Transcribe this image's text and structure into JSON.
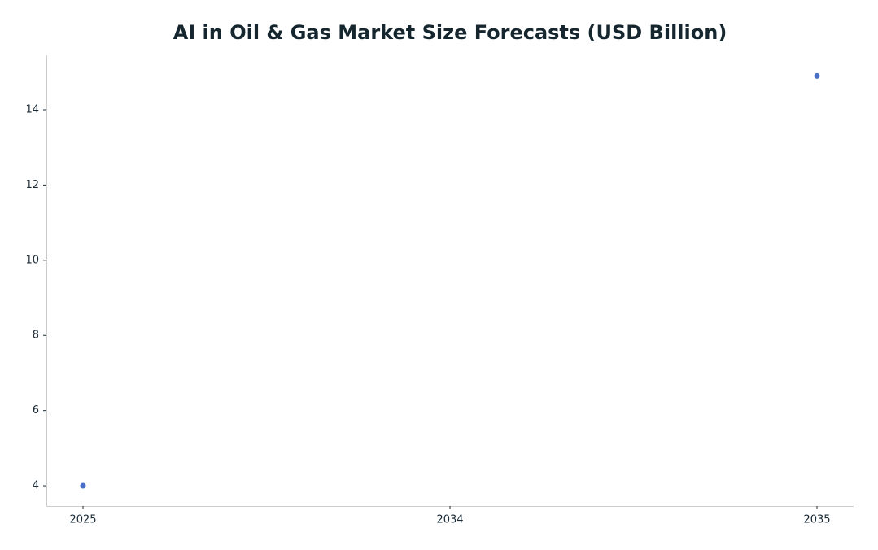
{
  "chart_data": {
    "type": "scatter",
    "title": "AI in Oil & Gas Market Size Forecasts (USD Billion)",
    "categories": [
      "2025",
      "2034",
      "2035"
    ],
    "values": [
      4.0,
      null,
      14.9
    ],
    "color": "#4a6fc4",
    "ylim": [
      3.46,
      15.45
    ],
    "yticks": [
      4,
      6,
      8,
      10,
      12,
      14
    ]
  }
}
